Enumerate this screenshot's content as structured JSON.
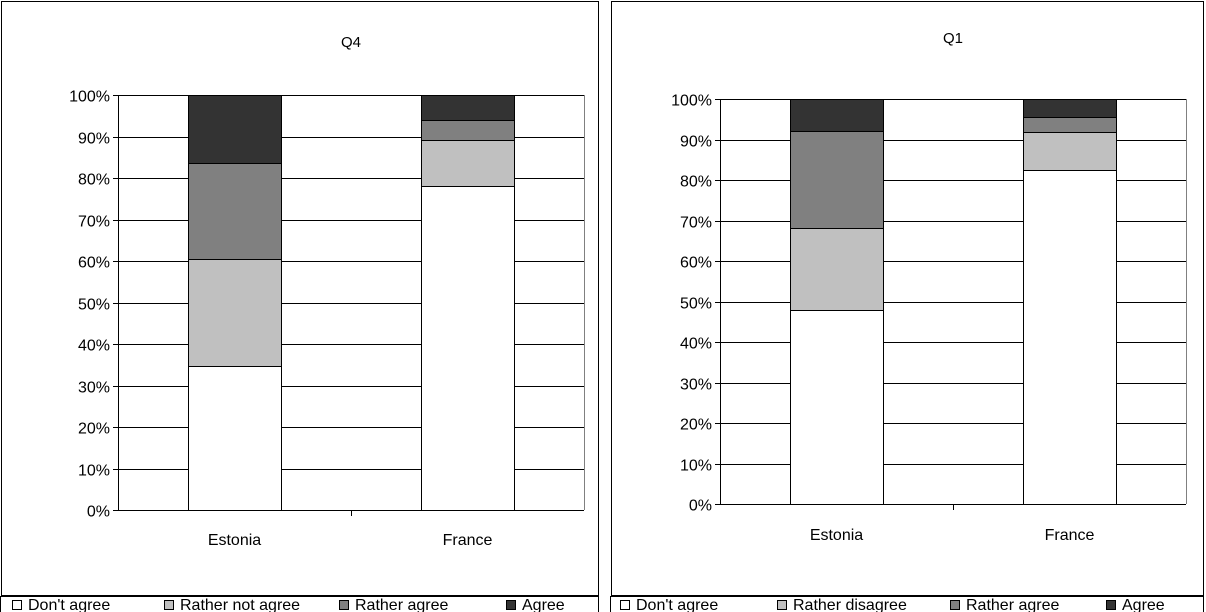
{
  "chart_data": [
    {
      "type": "bar",
      "stacked": true,
      "percent": true,
      "title": "Q4",
      "categories": [
        "Estonia",
        "France"
      ],
      "series": [
        {
          "name": "Don't agree",
          "color": "#ffffff",
          "values": [
            34.6,
            78.0
          ]
        },
        {
          "name": "Rather not agree",
          "color": "#c0c0c0",
          "values": [
            26.0,
            11.2
          ]
        },
        {
          "name": "Rather agree",
          "color": "#808080",
          "values": [
            23.1,
            4.8
          ]
        },
        {
          "name": "Agree",
          "color": "#333333",
          "values": [
            16.3,
            6.0
          ]
        }
      ],
      "ylim": [
        0,
        100
      ],
      "yticks": [
        "0%",
        "10%",
        "20%",
        "30%",
        "40%",
        "50%",
        "60%",
        "70%",
        "80%",
        "90%",
        "100%"
      ],
      "grid": true,
      "legend": "bottom"
    },
    {
      "type": "bar",
      "stacked": true,
      "percent": true,
      "title": "Q1",
      "categories": [
        "Estonia",
        "France"
      ],
      "series": [
        {
          "name": "Don't agree",
          "color": "#ffffff",
          "values": [
            48.0,
            82.5
          ]
        },
        {
          "name": "Rather disagree",
          "color": "#c0c0c0",
          "values": [
            20.2,
            9.3
          ]
        },
        {
          "name": "Rather agree",
          "color": "#808080",
          "values": [
            24.0,
            3.8
          ]
        },
        {
          "name": "Agree",
          "color": "#333333",
          "values": [
            7.8,
            4.4
          ]
        }
      ],
      "ylim": [
        0,
        100
      ],
      "yticks": [
        "0%",
        "10%",
        "20%",
        "30%",
        "40%",
        "50%",
        "60%",
        "70%",
        "80%",
        "90%",
        "100%"
      ],
      "grid": true,
      "legend": "bottom"
    }
  ]
}
